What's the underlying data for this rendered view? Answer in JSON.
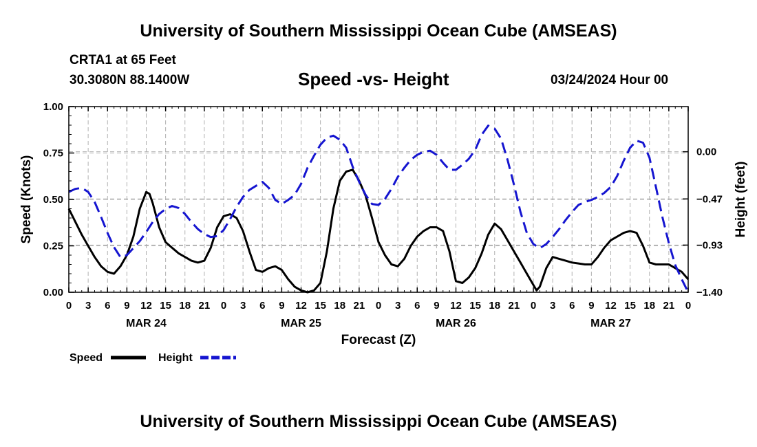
{
  "header": {
    "title_top": "University of Southern Mississippi Ocean Cube (AMSEAS)",
    "station": "CRTA1 at 65 Feet",
    "coords": "30.3080N  88.1400W",
    "subtitle": "Speed -vs- Height",
    "datetime": "03/24/2024 Hour 00",
    "title_bottom": "University of Southern Mississippi Ocean Cube (AMSEAS)"
  },
  "chart_data": {
    "type": "line",
    "title": "Speed -vs- Height",
    "xlabel": "Forecast (Z)",
    "ylabel_left": "Speed (Knots)",
    "ylabel_right": "Height (feet)",
    "x_range_hours": [
      0,
      96
    ],
    "x_tick_step_hours": 3,
    "x_tick_labels": [
      "0",
      "3",
      "6",
      "9",
      "12",
      "15",
      "18",
      "21",
      "0",
      "3",
      "6",
      "9",
      "12",
      "15",
      "18",
      "21",
      "0",
      "3",
      "6",
      "9",
      "12",
      "15",
      "18",
      "21",
      "0",
      "3",
      "6",
      "9",
      "12",
      "15",
      "18",
      "21",
      "0"
    ],
    "date_labels": [
      {
        "label": "MAR 24",
        "hour": 12
      },
      {
        "label": "MAR 25",
        "hour": 36
      },
      {
        "label": "MAR 26",
        "hour": 60
      },
      {
        "label": "MAR 27",
        "hour": 84
      }
    ],
    "y_left_range": [
      0,
      1
    ],
    "y_left_ticks": [
      {
        "value": 0,
        "label": "0.00"
      },
      {
        "value": 0.25,
        "label": "0.25"
      },
      {
        "value": 0.5,
        "label": "0.50"
      },
      {
        "value": 0.75,
        "label": "0.75"
      },
      {
        "value": 1,
        "label": "1.00"
      }
    ],
    "y_right_range": [
      -1.4,
      0.45
    ],
    "y_right_ticks": [
      {
        "value": 0.0,
        "label": "0.00"
      },
      {
        "value": -0.47,
        "label": "−0.47"
      },
      {
        "value": -0.93,
        "label": "−0.93"
      },
      {
        "value": -1.4,
        "label": "−1.40"
      }
    ],
    "grid": true,
    "legend": {
      "position": "bottom-left",
      "entries": [
        {
          "name": "Speed",
          "color": "#000000",
          "style": "solid"
        },
        {
          "name": "Height",
          "color": "#1515d0",
          "style": "dashed"
        }
      ]
    },
    "series": [
      {
        "name": "Speed",
        "axis": "left",
        "color": "#000000",
        "style": "solid",
        "points": [
          [
            0,
            0.45
          ],
          [
            1,
            0.38
          ],
          [
            2,
            0.31
          ],
          [
            3,
            0.25
          ],
          [
            4,
            0.19
          ],
          [
            5,
            0.14
          ],
          [
            6,
            0.11
          ],
          [
            7,
            0.1
          ],
          [
            8,
            0.14
          ],
          [
            9,
            0.2
          ],
          [
            10,
            0.3
          ],
          [
            11,
            0.45
          ],
          [
            12,
            0.54
          ],
          [
            12.5,
            0.53
          ],
          [
            13,
            0.48
          ],
          [
            14,
            0.35
          ],
          [
            15,
            0.27
          ],
          [
            16,
            0.24
          ],
          [
            17,
            0.21
          ],
          [
            18,
            0.19
          ],
          [
            19,
            0.17
          ],
          [
            20,
            0.16
          ],
          [
            21,
            0.17
          ],
          [
            22,
            0.24
          ],
          [
            23,
            0.35
          ],
          [
            24,
            0.41
          ],
          [
            25,
            0.42
          ],
          [
            26,
            0.4
          ],
          [
            27,
            0.33
          ],
          [
            28,
            0.22
          ],
          [
            29,
            0.12
          ],
          [
            30,
            0.11
          ],
          [
            31,
            0.13
          ],
          [
            32,
            0.14
          ],
          [
            33,
            0.12
          ],
          [
            34,
            0.07
          ],
          [
            35,
            0.03
          ],
          [
            36,
            0.01
          ],
          [
            37,
            0.0
          ],
          [
            38,
            0.01
          ],
          [
            39,
            0.05
          ],
          [
            40,
            0.22
          ],
          [
            41,
            0.45
          ],
          [
            42,
            0.6
          ],
          [
            43,
            0.65
          ],
          [
            44,
            0.66
          ],
          [
            45,
            0.6
          ],
          [
            46,
            0.52
          ],
          [
            47,
            0.4
          ],
          [
            48,
            0.27
          ],
          [
            49,
            0.2
          ],
          [
            50,
            0.15
          ],
          [
            51,
            0.14
          ],
          [
            52,
            0.18
          ],
          [
            53,
            0.25
          ],
          [
            54,
            0.3
          ],
          [
            55,
            0.33
          ],
          [
            56,
            0.35
          ],
          [
            57,
            0.35
          ],
          [
            58,
            0.33
          ],
          [
            59,
            0.22
          ],
          [
            60,
            0.06
          ],
          [
            61,
            0.05
          ],
          [
            62,
            0.08
          ],
          [
            63,
            0.13
          ],
          [
            64,
            0.21
          ],
          [
            65,
            0.31
          ],
          [
            66,
            0.37
          ],
          [
            67,
            0.34
          ],
          [
            68,
            0.28
          ],
          [
            69,
            0.22
          ],
          [
            70,
            0.16
          ],
          [
            71,
            0.1
          ],
          [
            72,
            0.04
          ],
          [
            72.5,
            0.01
          ],
          [
            73,
            0.03
          ],
          [
            74,
            0.13
          ],
          [
            75,
            0.19
          ],
          [
            76,
            0.18
          ],
          [
            77,
            0.17
          ],
          [
            78,
            0.16
          ],
          [
            79,
            0.155
          ],
          [
            80,
            0.15
          ],
          [
            81,
            0.15
          ],
          [
            82,
            0.19
          ],
          [
            83,
            0.24
          ],
          [
            84,
            0.28
          ],
          [
            85,
            0.3
          ],
          [
            86,
            0.32
          ],
          [
            87,
            0.33
          ],
          [
            88,
            0.32
          ],
          [
            89,
            0.25
          ],
          [
            90,
            0.16
          ],
          [
            91,
            0.15
          ],
          [
            92,
            0.15
          ],
          [
            93,
            0.15
          ],
          [
            94,
            0.13
          ],
          [
            95,
            0.11
          ],
          [
            96,
            0.07
          ]
        ]
      },
      {
        "name": "Height",
        "axis": "right",
        "color": "#1515d0",
        "style": "dashed",
        "points": [
          [
            0,
            -0.4
          ],
          [
            1,
            -0.37
          ],
          [
            2,
            -0.36
          ],
          [
            3,
            -0.4
          ],
          [
            4,
            -0.5
          ],
          [
            5,
            -0.65
          ],
          [
            6,
            -0.81
          ],
          [
            7,
            -0.95
          ],
          [
            8,
            -1.05
          ],
          [
            9,
            -1.03
          ],
          [
            10,
            -0.96
          ],
          [
            11,
            -0.89
          ],
          [
            12,
            -0.8
          ],
          [
            13,
            -0.7
          ],
          [
            14,
            -0.62
          ],
          [
            15,
            -0.57
          ],
          [
            16,
            -0.54
          ],
          [
            17,
            -0.56
          ],
          [
            18,
            -0.62
          ],
          [
            19,
            -0.7
          ],
          [
            20,
            -0.77
          ],
          [
            21,
            -0.82
          ],
          [
            22,
            -0.85
          ],
          [
            23,
            -0.84
          ],
          [
            24,
            -0.78
          ],
          [
            25,
            -0.67
          ],
          [
            26,
            -0.55
          ],
          [
            27,
            -0.45
          ],
          [
            28,
            -0.38
          ],
          [
            29,
            -0.34
          ],
          [
            30,
            -0.3
          ],
          [
            31,
            -0.36
          ],
          [
            32,
            -0.48
          ],
          [
            33,
            -0.52
          ],
          [
            34,
            -0.48
          ],
          [
            35,
            -0.43
          ],
          [
            36,
            -0.32
          ],
          [
            37,
            -0.16
          ],
          [
            38,
            -0.04
          ],
          [
            39,
            0.07
          ],
          [
            40,
            0.14
          ],
          [
            41,
            0.16
          ],
          [
            42,
            0.12
          ],
          [
            43,
            0.04
          ],
          [
            44,
            -0.15
          ],
          [
            45,
            -0.3
          ],
          [
            46,
            -0.43
          ],
          [
            47,
            -0.52
          ],
          [
            48,
            -0.53
          ],
          [
            49,
            -0.47
          ],
          [
            50,
            -0.37
          ],
          [
            51,
            -0.25
          ],
          [
            52,
            -0.16
          ],
          [
            53,
            -0.08
          ],
          [
            54,
            -0.03
          ],
          [
            55,
            0.0
          ],
          [
            56,
            0.01
          ],
          [
            57,
            -0.03
          ],
          [
            58,
            -0.11
          ],
          [
            59,
            -0.18
          ],
          [
            60,
            -0.18
          ],
          [
            61,
            -0.13
          ],
          [
            62,
            -0.07
          ],
          [
            63,
            0.02
          ],
          [
            64,
            0.17
          ],
          [
            65,
            0.26
          ],
          [
            66,
            0.23
          ],
          [
            67,
            0.13
          ],
          [
            68,
            -0.08
          ],
          [
            69,
            -0.33
          ],
          [
            70,
            -0.6
          ],
          [
            71,
            -0.81
          ],
          [
            72,
            -0.92
          ],
          [
            73,
            -0.96
          ],
          [
            74,
            -0.92
          ],
          [
            75,
            -0.85
          ],
          [
            76,
            -0.77
          ],
          [
            77,
            -0.68
          ],
          [
            78,
            -0.6
          ],
          [
            79,
            -0.53
          ],
          [
            80,
            -0.5
          ],
          [
            81,
            -0.48
          ],
          [
            82,
            -0.45
          ],
          [
            83,
            -0.41
          ],
          [
            84,
            -0.35
          ],
          [
            85,
            -0.24
          ],
          [
            86,
            -0.09
          ],
          [
            87,
            0.04
          ],
          [
            88,
            0.11
          ],
          [
            89,
            0.09
          ],
          [
            90,
            -0.06
          ],
          [
            91,
            -0.35
          ],
          [
            92,
            -0.65
          ],
          [
            93,
            -0.91
          ],
          [
            94,
            -1.13
          ],
          [
            95,
            -1.27
          ],
          [
            96,
            -1.4
          ]
        ]
      }
    ]
  }
}
